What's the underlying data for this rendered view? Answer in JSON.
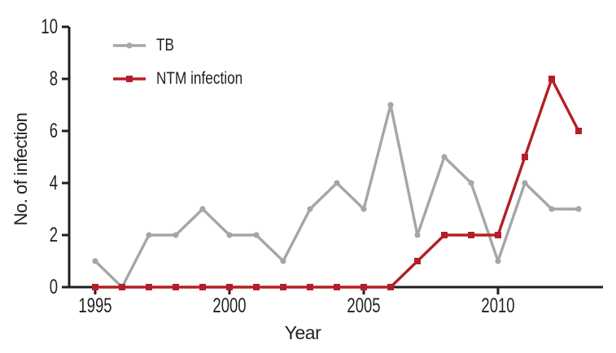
{
  "figure": {
    "background": "#ffffff"
  },
  "chart_data": {
    "type": "line",
    "title": "",
    "xlabel": "Year",
    "ylabel": "No. of infection",
    "x": [
      1995,
      1996,
      1997,
      1998,
      1999,
      2000,
      2001,
      2002,
      2003,
      2004,
      2005,
      2006,
      2007,
      2008,
      2009,
      2010,
      2011,
      2012,
      2013
    ],
    "series": [
      {
        "name": "TB",
        "color": "#a4a6a9",
        "marker": "circle",
        "values": [
          1,
          0,
          2,
          2,
          3,
          2,
          2,
          1,
          3,
          4,
          3,
          7,
          2,
          5,
          4,
          1,
          4,
          3,
          3
        ]
      },
      {
        "name": "NTM infection",
        "color": "#b22026",
        "marker": "square",
        "values": [
          0,
          0,
          0,
          0,
          0,
          0,
          0,
          0,
          0,
          0,
          0,
          0,
          1,
          2,
          2,
          2,
          5,
          8,
          6
        ]
      }
    ],
    "xlim": [
      1994,
      2014
    ],
    "ylim": [
      0,
      10
    ],
    "yticks": [
      0,
      2,
      4,
      6,
      8,
      10
    ],
    "xticks": [
      1995,
      2000,
      2005,
      2010
    ],
    "axis_color": "#231f20",
    "grid": false,
    "legend_position": "top-left"
  }
}
